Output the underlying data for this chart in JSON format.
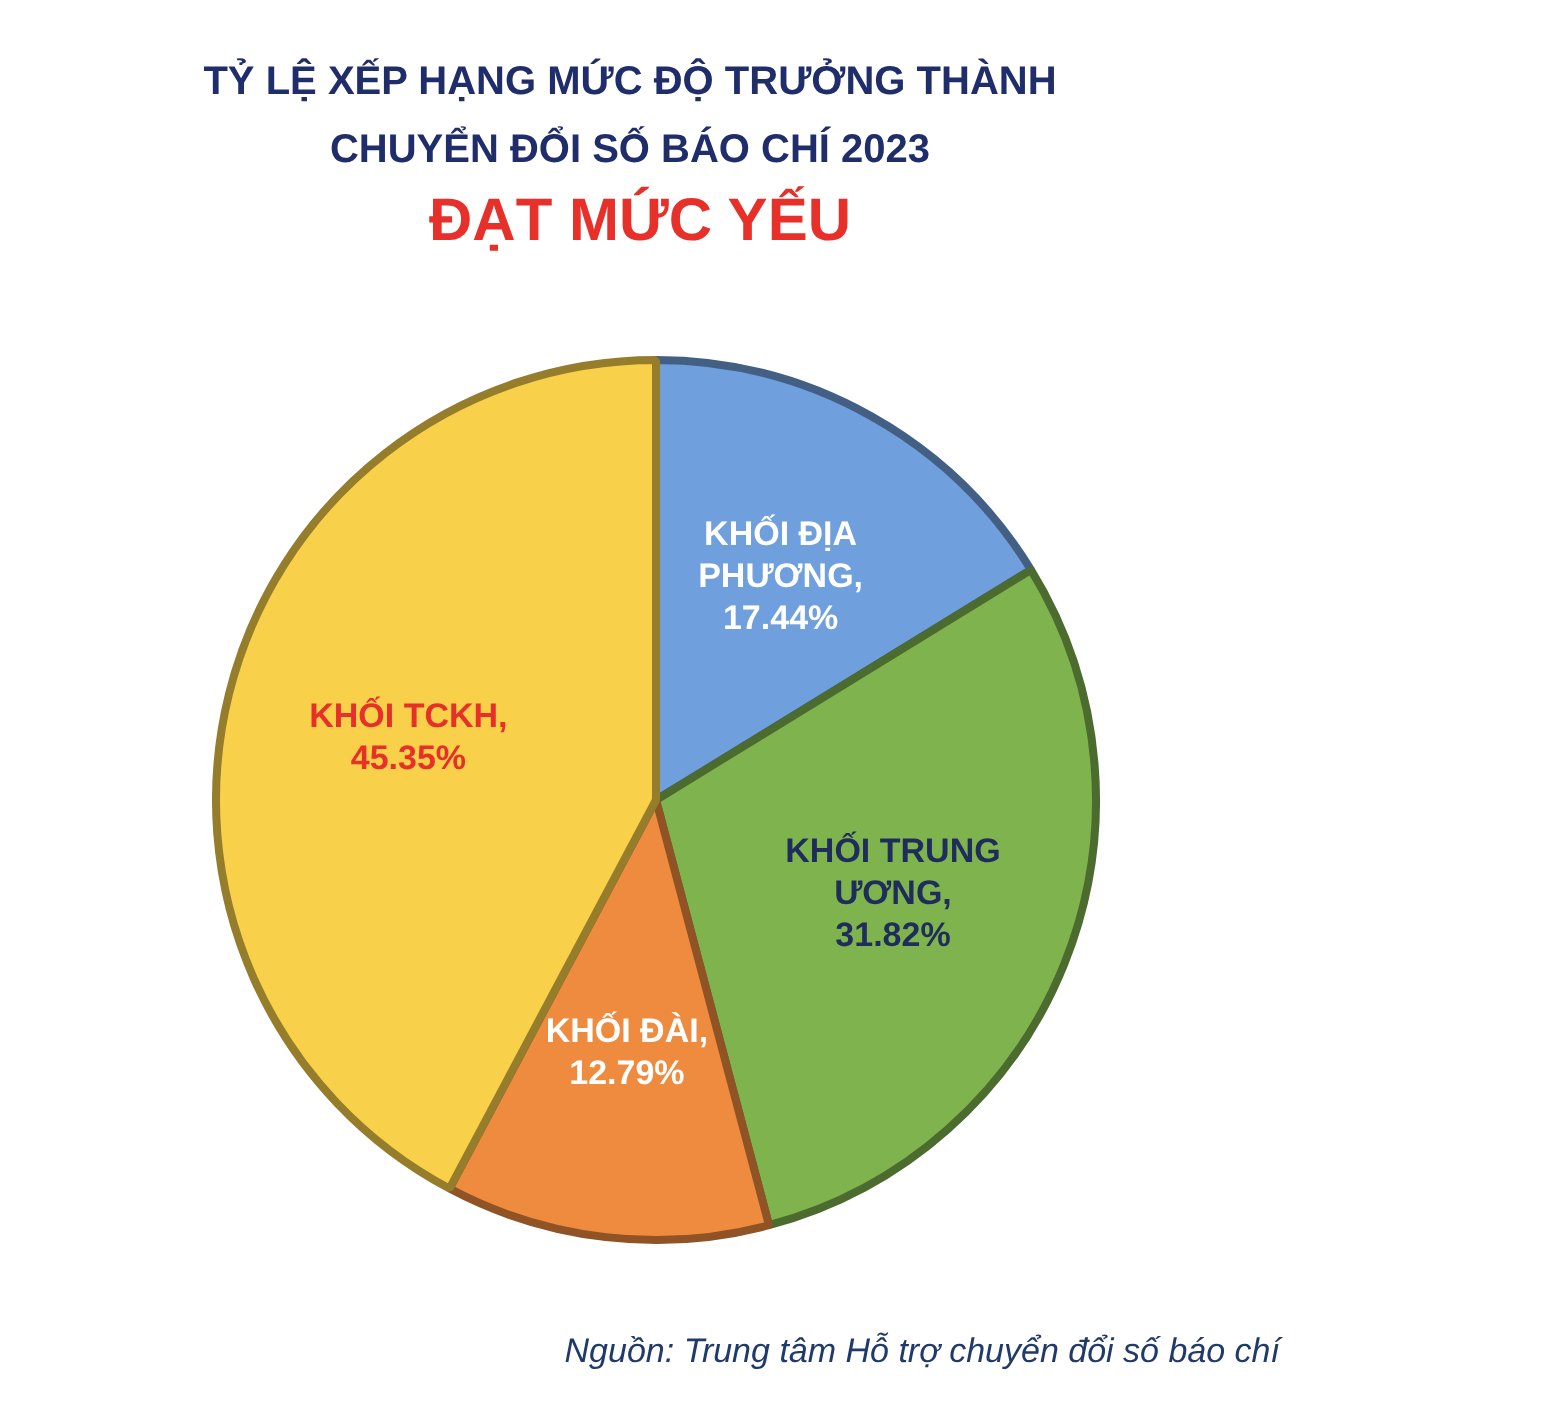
{
  "chart_data": {
    "type": "pie",
    "title": "TỶ LỆ XẾP HẠNG MỨC ĐỘ TRƯỞNG THÀNH CHUYỂN ĐỔI SỐ BÁO CHÍ 2023",
    "subtitle": "ĐẠT MỨC YẾU",
    "categories": [
      "KHỐI ĐỊA PHƯƠNG",
      "KHỐI TRUNG ƯƠNG",
      "KHỐI ĐÀI",
      "KHỐI TCKH"
    ],
    "values": [
      17.44,
      31.82,
      12.79,
      45.35
    ],
    "value_labels": [
      ", 17.44%",
      ", 31.82%",
      ", 12.79%",
      ", 45.35%"
    ],
    "colors": [
      "#6f9fdc",
      "#7fb34e",
      "#ee8b3e",
      "#f8d04a"
    ],
    "legend": false,
    "annotations": [
      "Nguồn: Trung tâm Hỗ trợ chuyển đổi số báo chí"
    ]
  }
}
